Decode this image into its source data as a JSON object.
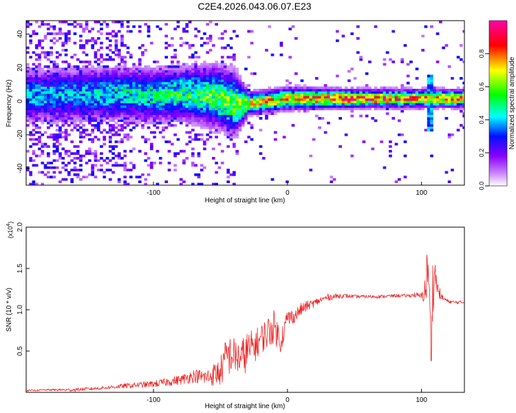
{
  "title": "C2E4.2026.043.06.07.E23",
  "chart_data": [
    {
      "type": "heatmap",
      "title": "",
      "xlabel": "Height of straight line (km)",
      "ylabel": "Frequency (Hz)",
      "xlim": [
        -195,
        132
      ],
      "ylim": [
        -50,
        48
      ],
      "x_ticks": [
        -100,
        0,
        100
      ],
      "y_ticks": [
        -40,
        -20,
        0,
        20,
        40
      ],
      "colorbar": {
        "label": "Normalized spectral amplitude",
        "range": [
          0.0,
          1.0
        ],
        "ticks": [
          0.0,
          0.2,
          0.4,
          0.6,
          0.8
        ],
        "colormap": [
          "#ffffff",
          "#8a00ff",
          "#0010ff",
          "#00ffff",
          "#00ff00",
          "#ffff00",
          "#ff0000",
          "#ff00aa"
        ]
      },
      "ridge": [
        {
          "x": -160,
          "center": 3,
          "width": 12,
          "amp": 0.45
        },
        {
          "x": -130,
          "center": 4,
          "width": 12,
          "amp": 0.5
        },
        {
          "x": -100,
          "center": 3,
          "width": 12,
          "amp": 0.55
        },
        {
          "x": -75,
          "center": 4,
          "width": 12,
          "amp": 0.6
        },
        {
          "x": -55,
          "center": 2,
          "width": 14,
          "amp": 0.65
        },
        {
          "x": -40,
          "center": -2,
          "width": 14,
          "amp": 0.7
        },
        {
          "x": -30,
          "center": -2,
          "width": 5,
          "amp": 0.8
        },
        {
          "x": 0,
          "center": 1,
          "width": 5,
          "amp": 0.85
        },
        {
          "x": 50,
          "center": 1,
          "width": 4,
          "amp": 1.0
        },
        {
          "x": 100,
          "center": 1,
          "width": 4,
          "amp": 0.9
        },
        {
          "x": 132,
          "center": 1,
          "width": 4,
          "amp": 0.9
        }
      ],
      "feature_note": "Broadband burst near x = 105 km spanning about -18 to 15 Hz"
    },
    {
      "type": "line",
      "title": "",
      "xlabel": "Height of straight line (km)",
      "ylabel": "SNR (10 * v/v)",
      "scale_label": "(x10",
      "scale_exponent": "4",
      "scale_suffix": ")",
      "xlim": [
        -195,
        132
      ],
      "ylim": [
        0.0,
        2.0
      ],
      "x_ticks": [
        -100,
        0,
        100
      ],
      "y_ticks": [
        0.5,
        1.0,
        1.5,
        2.0
      ],
      "y_tick_labels": [
        "0.5",
        "1.0",
        "1.5",
        "2.0"
      ],
      "series": [
        {
          "name": "SNR",
          "color": "#ee2222",
          "x": [
            -195,
            -180,
            -160,
            -140,
            -120,
            -100,
            -80,
            -70,
            -60,
            -50,
            -45,
            -40,
            -35,
            -30,
            -25,
            -20,
            -15,
            -10,
            -5,
            0,
            5,
            10,
            15,
            20,
            25,
            30,
            40,
            50,
            60,
            70,
            80,
            90,
            95,
            100,
            103,
            105,
            107,
            108,
            110,
            112,
            115,
            120,
            125,
            132
          ],
          "y": [
            0.02,
            0.03,
            0.03,
            0.05,
            0.08,
            0.1,
            0.15,
            0.2,
            0.18,
            0.25,
            0.45,
            0.45,
            0.4,
            0.5,
            0.55,
            0.65,
            0.72,
            0.8,
            0.62,
            0.9,
            0.92,
            1.0,
            1.05,
            1.08,
            1.12,
            1.15,
            1.17,
            1.16,
            1.16,
            1.16,
            1.17,
            1.17,
            1.18,
            1.16,
            1.25,
            1.6,
            0.4,
            1.2,
            1.45,
            1.25,
            1.15,
            1.1,
            1.09,
            1.09
          ],
          "noise": [
            0.01,
            0.01,
            0.02,
            0.02,
            0.03,
            0.04,
            0.06,
            0.08,
            0.1,
            0.18,
            0.26,
            0.22,
            0.22,
            0.25,
            0.2,
            0.18,
            0.2,
            0.2,
            0.15,
            0.12,
            0.08,
            0.08,
            0.06,
            0.05,
            0.04,
            0.04,
            0.03,
            0.02,
            0.02,
            0.02,
            0.02,
            0.02,
            0.03,
            0.04,
            0.2,
            0.4,
            0.5,
            0.4,
            0.2,
            0.1,
            0.04,
            0.02,
            0.02,
            0.02
          ]
        }
      ]
    }
  ]
}
